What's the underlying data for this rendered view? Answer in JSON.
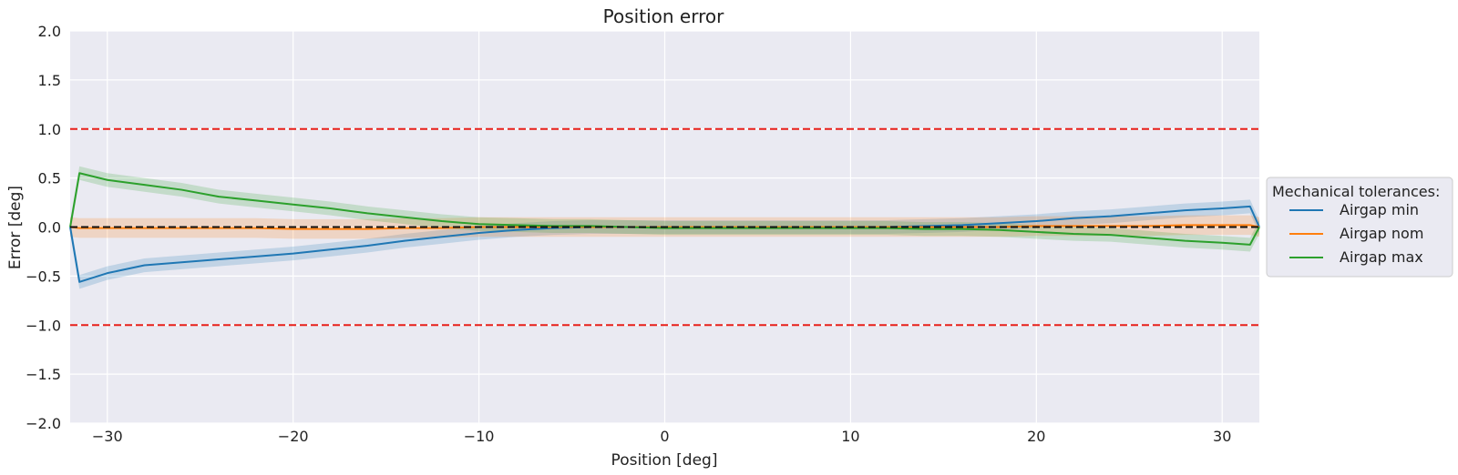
{
  "chart_data": {
    "type": "line",
    "title": "Position error",
    "xlabel": "Position [deg]",
    "ylabel": "Error [deg]",
    "xlim": [
      -32,
      32
    ],
    "ylim": [
      -2.0,
      2.0
    ],
    "xticks": [
      -30,
      -20,
      -10,
      0,
      10,
      20,
      30
    ],
    "yticks": [
      -2.0,
      -1.5,
      -1.0,
      -0.5,
      0.0,
      0.5,
      1.0,
      1.5,
      2.0
    ],
    "xtick_labels": [
      "−30",
      "−20",
      "−10",
      "0",
      "10",
      "20",
      "30"
    ],
    "ytick_labels": [
      "−2.0",
      "−1.5",
      "−1.0",
      "−0.5",
      "0.0",
      "0.5",
      "1.0",
      "1.5",
      "2.0"
    ],
    "grid": true,
    "legend": {
      "title": "Mechanical tolerances:",
      "placement": "right"
    },
    "reference_lines": [
      {
        "y": 1.0,
        "color": "#e8201a",
        "style": "dashed"
      },
      {
        "y": -1.0,
        "color": "#e8201a",
        "style": "dashed"
      },
      {
        "y": 0.0,
        "color": "#111111",
        "style": "dashed"
      }
    ],
    "series": [
      {
        "name": "Airgap min",
        "color": "#1f77b4",
        "band": 0.07,
        "x": [
          -32,
          -31.5,
          -30,
          -28,
          -26,
          -24,
          -22,
          -20,
          -18,
          -16,
          -14,
          -12,
          -10,
          -8,
          -6,
          -4,
          -2,
          0,
          2,
          4,
          6,
          8,
          10,
          12,
          14,
          16,
          18,
          20,
          22,
          24,
          26,
          28,
          30,
          31.5,
          32
        ],
        "values": [
          0.0,
          -0.56,
          -0.47,
          -0.39,
          -0.36,
          -0.33,
          -0.3,
          -0.27,
          -0.23,
          -0.19,
          -0.14,
          -0.1,
          -0.06,
          -0.03,
          -0.01,
          0.0,
          0.0,
          0.0,
          0.0,
          0.0,
          0.0,
          0.0,
          0.0,
          0.0,
          0.01,
          0.02,
          0.04,
          0.06,
          0.09,
          0.11,
          0.14,
          0.17,
          0.19,
          0.21,
          0.0
        ]
      },
      {
        "name": "Airgap nom",
        "color": "#ff7f0e",
        "band": 0.1,
        "x": [
          -32,
          -31.5,
          -30,
          -28,
          -26,
          -24,
          -22,
          -20,
          -18,
          -16,
          -14,
          -12,
          -10,
          -8,
          -6,
          -4,
          -2,
          0,
          2,
          4,
          6,
          8,
          10,
          12,
          14,
          16,
          18,
          20,
          22,
          24,
          26,
          28,
          30,
          31.5,
          32
        ],
        "values": [
          0.0,
          -0.01,
          -0.01,
          -0.01,
          -0.01,
          -0.01,
          -0.01,
          -0.02,
          -0.02,
          -0.02,
          -0.01,
          -0.01,
          0.0,
          0.0,
          0.0,
          0.0,
          0.0,
          0.0,
          0.0,
          0.0,
          0.0,
          0.0,
          0.0,
          0.0,
          0.0,
          0.0,
          0.0,
          0.01,
          0.01,
          0.01,
          0.01,
          0.02,
          0.02,
          0.02,
          0.0
        ]
      },
      {
        "name": "Airgap max",
        "color": "#2ca02c",
        "band": 0.07,
        "x": [
          -32,
          -31.5,
          -30,
          -28,
          -26,
          -24,
          -22,
          -20,
          -18,
          -16,
          -14,
          -12,
          -10,
          -8,
          -6,
          -4,
          -2,
          0,
          2,
          4,
          6,
          8,
          10,
          12,
          14,
          16,
          18,
          20,
          22,
          24,
          26,
          28,
          30,
          31.5,
          32
        ],
        "values": [
          0.0,
          0.55,
          0.48,
          0.43,
          0.38,
          0.31,
          0.27,
          0.23,
          0.19,
          0.14,
          0.1,
          0.06,
          0.03,
          0.02,
          0.01,
          0.01,
          0.0,
          -0.01,
          -0.01,
          -0.01,
          -0.01,
          -0.01,
          -0.01,
          -0.01,
          -0.02,
          -0.02,
          -0.03,
          -0.05,
          -0.07,
          -0.08,
          -0.11,
          -0.14,
          -0.16,
          -0.18,
          0.0
        ]
      }
    ]
  }
}
